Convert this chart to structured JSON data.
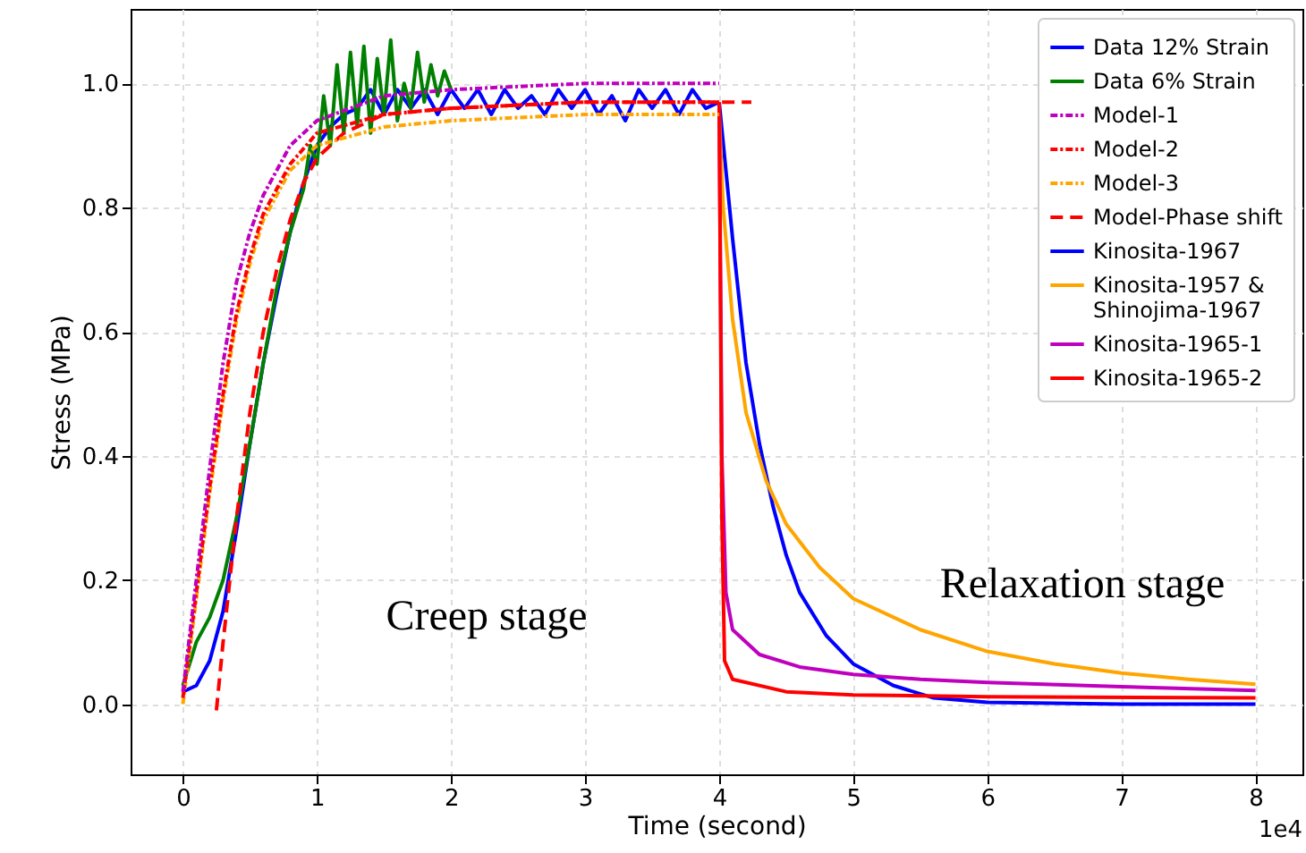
{
  "chart_data": {
    "type": "line",
    "xlabel": "Time (second)",
    "ylabel": "Stress (MPa)",
    "xlim": [
      -0.39,
      8.35
    ],
    "xticks": [
      0,
      1,
      2,
      3,
      4,
      5,
      6,
      7,
      8
    ],
    "ylim": [
      -0.113,
      1.12
    ],
    "yticks": [
      {
        "value": 0,
        "label": "0.0"
      },
      0.2,
      0.4,
      0.6,
      0.8,
      {
        "value": 1,
        "label": "1.0"
      }
    ],
    "grid": true,
    "legend": "top right",
    "annotations": [
      "Creep stage",
      "Relaxation stage",
      "1e4"
    ],
    "series": [
      {
        "name": "Data 12% Strain",
        "color": "#0000ff",
        "line_style": "solid",
        "x": [
          0,
          0.1,
          0.2,
          0.3,
          0.4,
          0.5,
          0.6,
          0.7,
          0.8,
          0.9,
          1.0,
          1.1,
          1.2,
          1.3,
          1.4,
          1.5,
          1.6,
          1.7,
          1.8,
          1.9,
          2.0,
          2.1,
          2.2,
          2.3,
          2.4,
          2.5,
          2.6,
          2.7,
          2.8,
          2.9,
          3.0,
          3.1,
          3.2,
          3.3,
          3.4,
          3.5,
          3.6,
          3.7,
          3.8,
          3.9,
          4.0
        ],
        "values": [
          0.02,
          0.03,
          0.07,
          0.15,
          0.28,
          0.42,
          0.55,
          0.66,
          0.76,
          0.84,
          0.9,
          0.93,
          0.95,
          0.96,
          0.99,
          0.95,
          0.99,
          0.96,
          0.99,
          0.95,
          0.99,
          0.96,
          0.99,
          0.95,
          0.99,
          0.96,
          0.98,
          0.95,
          0.99,
          0.96,
          0.99,
          0.95,
          0.98,
          0.94,
          0.99,
          0.96,
          0.99,
          0.95,
          0.99,
          0.96,
          0.97
        ]
      },
      {
        "name": "Data 6% Strain",
        "color": "#008000",
        "line_style": "solid",
        "x": [
          0,
          0.1,
          0.2,
          0.3,
          0.4,
          0.5,
          0.6,
          0.7,
          0.8,
          0.9,
          0.95,
          1.0,
          1.05,
          1.1,
          1.15,
          1.2,
          1.25,
          1.3,
          1.35,
          1.4,
          1.45,
          1.5,
          1.55,
          1.6,
          1.65,
          1.7,
          1.75,
          1.8,
          1.85,
          1.9,
          1.95,
          2.0
        ],
        "values": [
          0.03,
          0.1,
          0.14,
          0.2,
          0.3,
          0.42,
          0.55,
          0.67,
          0.76,
          0.83,
          0.9,
          0.87,
          0.98,
          0.9,
          1.03,
          0.92,
          1.05,
          0.93,
          1.06,
          0.92,
          1.04,
          0.95,
          1.07,
          0.94,
          1.0,
          0.96,
          1.05,
          0.97,
          1.03,
          0.98,
          1.02,
          0.99
        ]
      },
      {
        "name": "Model-1",
        "color": "#bf00bf",
        "line_style": "dashdot",
        "x": [
          0,
          0.1,
          0.2,
          0.3,
          0.4,
          0.5,
          0.6,
          0.8,
          1.0,
          1.5,
          2,
          3,
          4
        ],
        "values": [
          0.02,
          0.2,
          0.38,
          0.55,
          0.68,
          0.76,
          0.82,
          0.9,
          0.94,
          0.98,
          0.99,
          1.0,
          1.0
        ]
      },
      {
        "name": "Model-2",
        "color": "#ff0000",
        "line_style": "dashdot",
        "x": [
          0,
          0.1,
          0.2,
          0.3,
          0.4,
          0.5,
          0.6,
          0.8,
          1.0,
          1.5,
          2,
          3,
          4
        ],
        "values": [
          0.01,
          0.18,
          0.35,
          0.5,
          0.63,
          0.72,
          0.79,
          0.87,
          0.92,
          0.95,
          0.96,
          0.97,
          0.97
        ]
      },
      {
        "name": "Model-3",
        "color": "#ffa500",
        "line_style": "dashdot",
        "x": [
          0,
          0.1,
          0.2,
          0.3,
          0.4,
          0.5,
          0.6,
          0.8,
          1.0,
          1.5,
          2,
          3,
          4
        ],
        "values": [
          0.0,
          0.17,
          0.34,
          0.49,
          0.62,
          0.71,
          0.78,
          0.86,
          0.9,
          0.93,
          0.94,
          0.95,
          0.95
        ]
      },
      {
        "name": "Model-Phase shift",
        "color": "#ff0000",
        "line_style": "dashed",
        "x": [
          0.25,
          0.3,
          0.4,
          0.5,
          0.6,
          0.7,
          0.8,
          0.9,
          1.0,
          1.2,
          1.5,
          2,
          3,
          4.24
        ],
        "values": [
          -0.01,
          0.1,
          0.3,
          0.47,
          0.6,
          0.7,
          0.78,
          0.84,
          0.88,
          0.92,
          0.95,
          0.96,
          0.97,
          0.97
        ]
      },
      {
        "name": "Kinosita-1967",
        "color": "#0000ff",
        "line_style": "solid",
        "x": [
          4.0,
          4.1,
          4.2,
          4.3,
          4.4,
          4.5,
          4.6,
          4.8,
          5.0,
          5.3,
          5.6,
          6,
          7,
          8
        ],
        "values": [
          0.97,
          0.75,
          0.55,
          0.42,
          0.32,
          0.24,
          0.18,
          0.11,
          0.065,
          0.03,
          0.01,
          0.003,
          0,
          0
        ]
      },
      {
        "name": "Kinosita-1957 & Shinojima-1967",
        "color": "#ffa500",
        "line_style": "solid",
        "x": [
          4.0,
          4.03,
          4.1,
          4.2,
          4.35,
          4.5,
          4.75,
          5,
          5.5,
          6,
          6.5,
          7,
          7.5,
          8
        ],
        "values": [
          0.95,
          0.8,
          0.62,
          0.47,
          0.36,
          0.29,
          0.22,
          0.17,
          0.12,
          0.085,
          0.065,
          0.05,
          0.04,
          0.032
        ]
      },
      {
        "name": "Kinosita-1965-1",
        "color": "#bf00bf",
        "line_style": "solid",
        "x": [
          4.0,
          4.02,
          4.05,
          4.1,
          4.3,
          4.6,
          5,
          5.5,
          6,
          7,
          8
        ],
        "values": [
          0.97,
          0.4,
          0.18,
          0.12,
          0.08,
          0.06,
          0.048,
          0.04,
          0.035,
          0.028,
          0.022
        ]
      },
      {
        "name": "Kinosita-1965-2",
        "color": "#ff0000",
        "line_style": "solid",
        "x": [
          4.0,
          4.02,
          4.04,
          4.1,
          4.5,
          5,
          6,
          8
        ],
        "values": [
          0.97,
          0.3,
          0.07,
          0.04,
          0.02,
          0.015,
          0.012,
          0.01
        ]
      }
    ]
  }
}
